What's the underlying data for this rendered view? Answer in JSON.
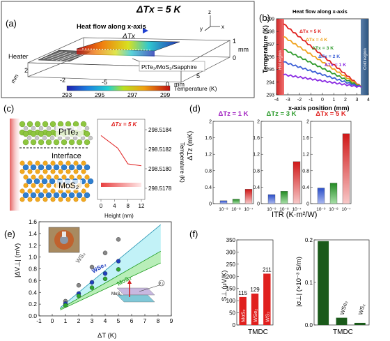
{
  "panel_a": {
    "label": "(a)",
    "title": "ΔTx = 5 K",
    "heater_label": "Heater",
    "heat_flow_label": "Heat flow along x-axis",
    "delta_label": "ΔTx",
    "sample_label": "PtTe₂/MoS₂/Sapphire",
    "axis_y": "y",
    "axis_z": "z",
    "axis_x": "x",
    "ticks_z": [
      "1",
      "0"
    ],
    "unit_z": "mm",
    "ticks_x": [
      "-5",
      "0",
      "5"
    ],
    "unit_x": "mm",
    "ticks_y": [
      "2",
      "-2"
    ],
    "unit_y": "mm",
    "colorbar_title": "Temperature (K)",
    "colorbar_ticks": [
      "293",
      "295",
      "297",
      "299"
    ]
  },
  "chart_data": [
    {
      "panel": "b",
      "label": "(b)",
      "type": "line",
      "banner": "Heat flow along x-axis",
      "xlabel": "x-axis position (mm)",
      "ylabel": "Temperature (K)",
      "xlim": [
        -4,
        4
      ],
      "ylim": [
        293,
        299
      ],
      "xticks": [
        -4,
        -3,
        -2,
        -1,
        0,
        1,
        2,
        3,
        4
      ],
      "yticks": [
        293,
        294,
        295,
        296,
        297,
        298,
        299
      ],
      "hot_label": "Hot region",
      "cold_label": "Cold region",
      "series": [
        {
          "name": "ΔTx = 5 K",
          "color": "#e0201e",
          "x": [
            -3.4,
            3.4
          ],
          "y": [
            298.6,
            293.6
          ]
        },
        {
          "name": "ΔTx = 4 K",
          "color": "#f0a21c",
          "x": [
            -3.4,
            3.4
          ],
          "y": [
            297.6,
            293.6
          ]
        },
        {
          "name": "ΔTx = 3 K",
          "color": "#2e9a2c",
          "x": [
            -3.4,
            3.4
          ],
          "y": [
            296.6,
            293.6
          ]
        },
        {
          "name": "ΔTx = 2 K",
          "color": "#3a5ed6",
          "x": [
            -3.4,
            3.4
          ],
          "y": [
            295.6,
            293.6
          ]
        },
        {
          "name": "ΔTx = 1 K",
          "color": "#8a2be2",
          "x": [
            -3.4,
            3.4
          ],
          "y": [
            294.6,
            293.6
          ]
        }
      ]
    },
    {
      "panel": "c",
      "type": "line",
      "title": "ΔTx = 5 K",
      "xlabel": "Height (nm)",
      "ylabel": "Temperature (K)",
      "xlim": [
        0,
        12
      ],
      "ylim": [
        298.5178,
        298.5184
      ],
      "xticks": [
        0,
        4,
        8,
        12
      ],
      "yticks": [
        298.5178,
        298.518,
        298.5182,
        298.5184
      ],
      "series": [
        {
          "name": "",
          "color": "#e02020",
          "x": [
            0,
            5,
            8,
            12
          ],
          "y": [
            298.51834,
            298.51821,
            298.51805,
            298.51803
          ]
        }
      ]
    },
    {
      "panel": "d",
      "type": "bar",
      "ylabel": "ΔTz (mK)",
      "xlabel": "ITR (K·m²/W)",
      "ylim": [
        0,
        2.0
      ],
      "yticks": [
        0,
        0.4,
        0.8,
        1.2,
        1.6,
        2.0
      ],
      "subplots": [
        {
          "title": "ΔTz = 1 K",
          "title_color": "#a020c0",
          "categories": [
            "10⁻⁹",
            "10⁻⁸",
            "10⁻⁷"
          ],
          "values": [
            0.07,
            0.11,
            0.35
          ]
        },
        {
          "title": "ΔTz = 3 K",
          "title_color": "#2a9a2a",
          "categories": [
            "10⁻⁹",
            "10⁻⁸",
            "10⁻⁷"
          ],
          "values": [
            0.22,
            0.3,
            1.02
          ]
        },
        {
          "title": "ΔTx = 5 K",
          "title_color": "#e0201e",
          "categories": [
            "10⁻⁹",
            "10⁻⁸",
            "10⁻⁷"
          ],
          "values": [
            0.38,
            0.5,
            1.7
          ]
        }
      ],
      "bar_colors": [
        "#3a5ed6",
        "#2e9a2c",
        "#e0201e"
      ]
    },
    {
      "panel": "e",
      "type": "scatter",
      "xlabel": "ΔT (K)",
      "ylabel": "|ΔV⊥| (mV)",
      "xlim": [
        -1,
        9
      ],
      "ylim": [
        0,
        1.6
      ],
      "xticks": [
        -1,
        0,
        1,
        2,
        3,
        4,
        5,
        6,
        7,
        8,
        9
      ],
      "yticks": [
        0,
        0.2,
        0.4,
        0.6,
        0.8,
        1.0,
        1.2,
        1.4,
        1.6
      ],
      "series": [
        {
          "name": "WS₂",
          "color": "#888888",
          "x": [
            1,
            2,
            3,
            4,
            5
          ],
          "y": [
            0.25,
            0.52,
            0.83,
            1.07,
            1.3
          ]
        },
        {
          "name": "WSe₂",
          "color": "#1f3fbf",
          "x": [
            1,
            2,
            3,
            4,
            5
          ],
          "y": [
            0.21,
            0.38,
            0.57,
            0.72,
            0.93
          ]
        },
        {
          "name": "MoS₂",
          "color": "#2ea82e",
          "x": [
            1,
            2,
            3,
            4,
            5
          ],
          "y": [
            0.18,
            0.34,
            0.48,
            0.63,
            0.79
          ]
        }
      ]
    },
    {
      "panel": "f",
      "type": "bar",
      "ylabel": "S⊥ (μV/K)",
      "xlabel": "TMDC",
      "ylim": [
        0,
        350
      ],
      "yticks": [
        0,
        50,
        100,
        150,
        200,
        250,
        300,
        350
      ],
      "categories": [
        "MoS₂",
        "WSe₂",
        "WS₂"
      ],
      "values": [
        115,
        129,
        211
      ],
      "color": "#e0201e"
    },
    {
      "panel": "f2",
      "type": "bar",
      "ylabel": "|σ⊥| (×10⁻³ S/m)",
      "xlabel": "TMDC",
      "ylim": [
        0,
        0.2
      ],
      "yticks": [
        0,
        0.1,
        0.2
      ],
      "categories": [
        "MoS₂",
        "WSe₂",
        "WS₂"
      ],
      "values": [
        0.197,
        0.017,
        0.005
      ],
      "color": "#1a5a1a"
    }
  ],
  "panel_c": {
    "label": "(c)",
    "layer_top": "PtTe₂",
    "interface": "Interface",
    "layer_bottom": "MoS₂"
  },
  "panel_d": {
    "label": "(d)"
  },
  "panel_e": {
    "label": "(e)",
    "inset_mos2": "MoS₂",
    "inset_vbar": "V⊥"
  },
  "panel_f": {
    "label": "(f)"
  }
}
